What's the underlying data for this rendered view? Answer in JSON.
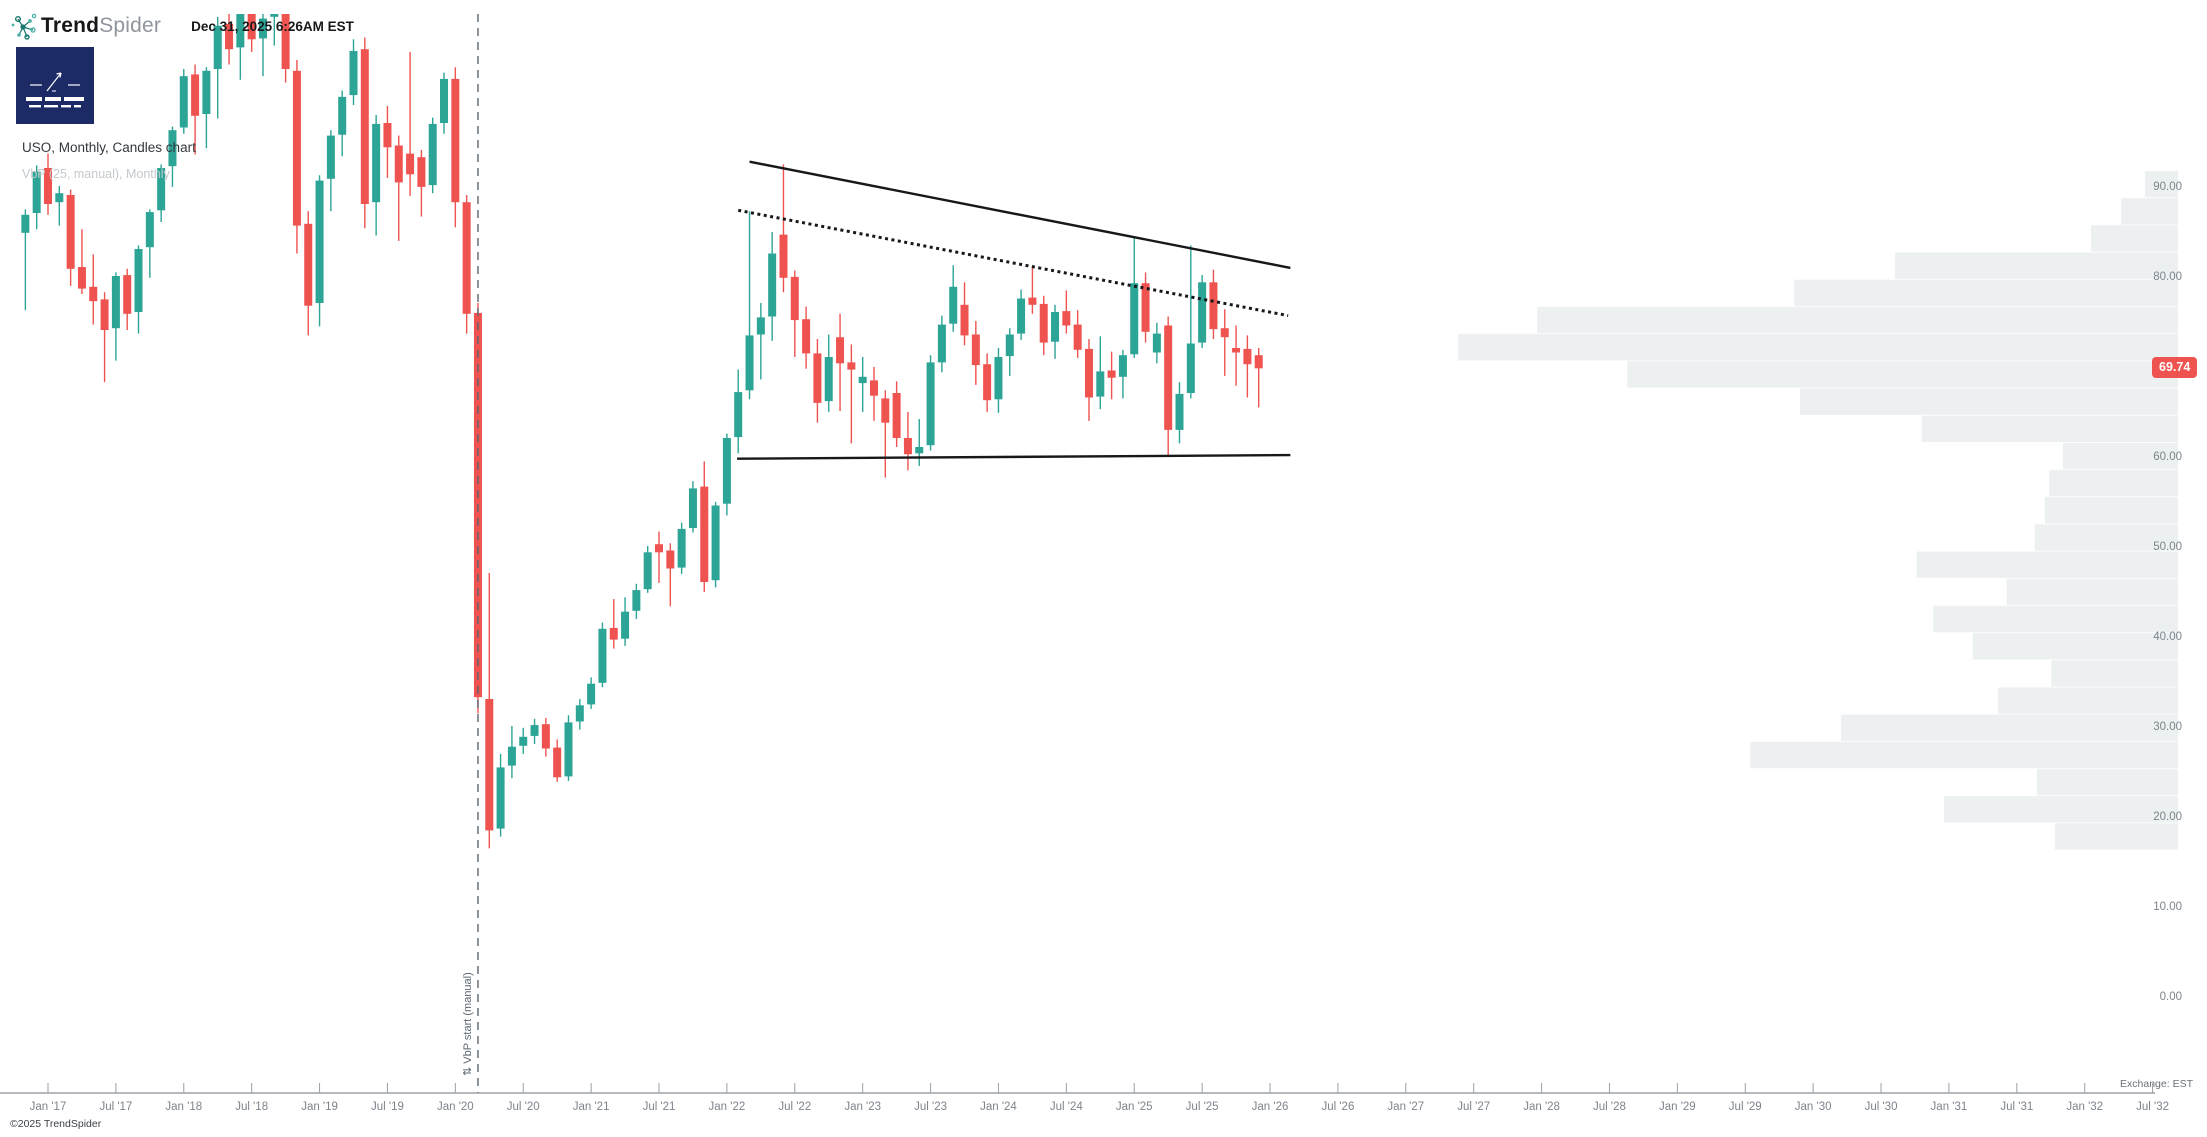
{
  "header": {
    "brand_bold": "Trend",
    "brand_light": "Spider",
    "timestamp": "Dec 31, 2025 6:26AM EST"
  },
  "titles": {
    "symbol_line": "USO, Monthly, Candles chart",
    "indicator_line": "VbP (25, manual), Monthly"
  },
  "footer": {
    "copyright": "©2025 TrendSpider",
    "exchange_note": "Exchange: EST"
  },
  "price_tag": {
    "value": "69.74"
  },
  "vbp_start_label": "⇅ VbP start (manual)",
  "colors": {
    "up": "#2ca496",
    "down": "#ef5350",
    "vbp_bar": "#ecf0f1",
    "axis_text": "#7d848c",
    "trendline": "#16181a",
    "dashed_line": "#5b6673",
    "tag_bg": "#ef5350",
    "watermark_bg": "#1c2a66",
    "icon_teal_dark": "#17796d",
    "icon_teal_light": "#4fb3a9"
  },
  "chart_data": {
    "type": "candlestick",
    "symbol": "USO",
    "timeframe": "Monthly",
    "last_price": 69.74,
    "y_ticks": [
      90,
      80,
      70,
      60,
      50,
      40,
      30,
      20,
      10,
      0
    ],
    "x_tick_labels": [
      "Jan '17",
      "Jul '17",
      "Jan '18",
      "Jul '18",
      "Jan '19",
      "Jul '19",
      "Jan '20",
      "Jul '20",
      "Jan '21",
      "Jul '21",
      "Jan '22",
      "Jul '22",
      "Jan '23",
      "Jul '23",
      "Jan '24",
      "Jul '24",
      "Jan '25",
      "Jul '25",
      "Jan '26",
      "Jul '26",
      "Jan '27",
      "Jul '27",
      "Jan '28",
      "Jul '28",
      "Jan '29",
      "Jul '29",
      "Jan '30",
      "Jul '30",
      "Jan '31",
      "Jul '31",
      "Jan '32",
      "Jul '32"
    ],
    "start_month": "2016-11",
    "ohlc": [
      [
        "2016-11",
        84.8,
        87.4,
        76.2,
        86.8
      ],
      [
        "2016-12",
        87.0,
        92.3,
        85.2,
        91.6
      ],
      [
        "2017-01",
        92.0,
        93.6,
        86.8,
        88.0
      ],
      [
        "2017-02",
        88.2,
        90.0,
        85.6,
        89.2
      ],
      [
        "2017-03",
        89.0,
        89.6,
        78.9,
        80.8
      ],
      [
        "2017-04",
        81.0,
        85.2,
        78.0,
        78.6
      ],
      [
        "2017-05",
        78.8,
        82.4,
        74.6,
        77.2
      ],
      [
        "2017-06",
        77.4,
        78.2,
        68.2,
        74.0
      ],
      [
        "2017-07",
        74.2,
        80.4,
        70.6,
        80.0
      ],
      [
        "2017-08",
        80.1,
        80.8,
        74.0,
        75.8
      ],
      [
        "2017-09",
        76.0,
        83.4,
        73.6,
        83.0
      ],
      [
        "2017-10",
        83.2,
        87.4,
        79.8,
        87.1
      ],
      [
        "2017-11",
        87.3,
        92.4,
        86.0,
        92.0
      ],
      [
        "2017-12",
        92.2,
        96.6,
        89.9,
        96.2
      ],
      [
        "2018-01",
        96.5,
        103.0,
        95.8,
        102.2
      ],
      [
        "2018-02",
        102.4,
        103.5,
        93.5,
        97.8
      ],
      [
        "2018-03",
        98.0,
        103.2,
        94.2,
        102.8
      ],
      [
        "2018-04",
        103.0,
        108.8,
        97.5,
        107.8
      ],
      [
        "2018-05",
        108.0,
        111.5,
        103.5,
        105.2
      ],
      [
        "2018-06",
        105.4,
        110.4,
        101.8,
        109.6
      ],
      [
        "2018-07",
        109.8,
        111.0,
        104.9,
        106.3
      ],
      [
        "2018-08",
        106.4,
        109.3,
        102.2,
        108.6
      ],
      [
        "2018-09",
        108.8,
        112.5,
        105.6,
        111.8
      ],
      [
        "2018-10",
        112.0,
        114.0,
        101.5,
        103.0
      ],
      [
        "2018-11",
        102.8,
        104.0,
        82.5,
        85.6
      ],
      [
        "2018-12",
        85.8,
        87.2,
        73.4,
        76.7
      ],
      [
        "2019-01",
        77.0,
        91.2,
        74.4,
        90.6
      ],
      [
        "2019-02",
        90.8,
        96.2,
        87.2,
        95.6
      ],
      [
        "2019-03",
        95.7,
        100.6,
        93.3,
        99.9
      ],
      [
        "2019-04",
        100.1,
        106.3,
        99.0,
        105.0
      ],
      [
        "2019-05",
        105.2,
        106.5,
        85.3,
        88.0
      ],
      [
        "2019-06",
        88.2,
        97.9,
        84.5,
        96.9
      ],
      [
        "2019-07",
        97.0,
        98.9,
        90.9,
        94.3
      ],
      [
        "2019-08",
        94.5,
        95.6,
        83.9,
        90.4
      ],
      [
        "2019-09",
        93.6,
        104.9,
        88.9,
        91.3
      ],
      [
        "2019-10",
        93.2,
        94.0,
        86.6,
        89.9
      ],
      [
        "2019-11",
        90.1,
        97.6,
        89.2,
        96.9
      ],
      [
        "2019-12",
        97.0,
        102.6,
        95.8,
        101.9
      ],
      [
        "2020-01",
        101.9,
        103.2,
        85.4,
        88.2
      ],
      [
        "2020-02",
        88.2,
        89.0,
        73.6,
        75.8
      ],
      [
        "2020-03",
        75.9,
        77.0,
        31.4,
        33.2
      ],
      [
        "2020-04",
        33.0,
        47.0,
        16.4,
        18.4
      ],
      [
        "2020-05",
        18.6,
        26.9,
        17.7,
        25.4
      ],
      [
        "2020-06",
        25.6,
        30.0,
        24.2,
        27.7
      ],
      [
        "2020-07",
        27.8,
        29.8,
        26.9,
        28.8
      ],
      [
        "2020-08",
        28.9,
        30.8,
        28.0,
        30.1
      ],
      [
        "2020-09",
        30.2,
        30.9,
        26.6,
        27.5
      ],
      [
        "2020-10",
        27.6,
        28.5,
        23.8,
        24.3
      ],
      [
        "2020-11",
        24.4,
        31.2,
        23.9,
        30.4
      ],
      [
        "2020-12",
        30.5,
        33.0,
        29.6,
        32.3
      ],
      [
        "2021-01",
        32.4,
        35.4,
        31.9,
        34.7
      ],
      [
        "2021-02",
        34.8,
        41.5,
        34.3,
        40.8
      ],
      [
        "2021-03",
        40.9,
        44.1,
        38.6,
        39.6
      ],
      [
        "2021-04",
        39.7,
        44.3,
        38.9,
        42.7
      ],
      [
        "2021-05",
        42.8,
        45.8,
        41.9,
        45.1
      ],
      [
        "2021-06",
        45.2,
        50.0,
        44.8,
        49.3
      ],
      [
        "2021-07",
        50.2,
        51.6,
        45.9,
        49.3
      ],
      [
        "2021-08",
        49.5,
        50.3,
        43.3,
        47.5
      ],
      [
        "2021-09",
        47.6,
        52.6,
        46.9,
        51.9
      ],
      [
        "2021-10",
        52.0,
        57.2,
        51.5,
        56.4
      ],
      [
        "2021-11",
        56.6,
        59.4,
        44.9,
        46.0
      ],
      [
        "2021-12",
        46.2,
        54.9,
        45.4,
        54.5
      ],
      [
        "2022-01",
        54.7,
        62.5,
        53.4,
        62.0
      ],
      [
        "2022-02",
        62.1,
        69.6,
        60.3,
        67.1
      ],
      [
        "2022-03",
        67.3,
        87.2,
        66.3,
        73.4
      ],
      [
        "2022-04",
        73.5,
        77.0,
        68.5,
        75.4
      ],
      [
        "2022-05",
        75.5,
        84.9,
        72.8,
        82.5
      ],
      [
        "2022-06",
        84.6,
        92.4,
        78.2,
        79.8
      ],
      [
        "2022-07",
        79.9,
        80.6,
        71.0,
        75.1
      ],
      [
        "2022-08",
        75.2,
        76.6,
        69.7,
        71.4
      ],
      [
        "2022-09",
        71.4,
        73.0,
        63.7,
        65.9
      ],
      [
        "2022-10",
        66.1,
        73.5,
        64.9,
        71.0
      ],
      [
        "2022-11",
        73.2,
        75.8,
        65.0,
        70.3
      ],
      [
        "2022-12",
        70.4,
        72.4,
        61.4,
        69.6
      ],
      [
        "2023-01",
        68.1,
        71.0,
        64.9,
        68.8
      ],
      [
        "2023-02",
        68.4,
        69.9,
        63.9,
        66.7
      ],
      [
        "2023-03",
        66.4,
        67.3,
        57.6,
        63.7
      ],
      [
        "2023-04",
        67.0,
        68.3,
        61.0,
        62.0
      ],
      [
        "2023-05",
        62.0,
        64.9,
        58.4,
        60.2
      ],
      [
        "2023-06",
        60.3,
        64.1,
        58.9,
        61.0
      ],
      [
        "2023-07",
        61.2,
        71.2,
        60.6,
        70.4
      ],
      [
        "2023-08",
        70.4,
        75.6,
        69.3,
        74.6
      ],
      [
        "2023-09",
        74.7,
        81.2,
        73.8,
        78.8
      ],
      [
        "2023-10",
        76.8,
        79.3,
        72.3,
        73.4
      ],
      [
        "2023-11",
        73.5,
        75.0,
        67.9,
        70.1
      ],
      [
        "2023-12",
        70.2,
        71.4,
        64.9,
        66.2
      ],
      [
        "2024-01",
        66.3,
        72.0,
        64.8,
        71.0
      ],
      [
        "2024-02",
        71.1,
        74.2,
        68.9,
        73.5
      ],
      [
        "2024-03",
        73.6,
        78.5,
        72.9,
        77.5
      ],
      [
        "2024-04",
        77.6,
        80.9,
        75.8,
        76.8
      ],
      [
        "2024-05",
        76.9,
        77.8,
        71.2,
        72.6
      ],
      [
        "2024-06",
        72.7,
        76.8,
        70.8,
        76.0
      ],
      [
        "2024-07",
        76.1,
        78.4,
        73.6,
        74.5
      ],
      [
        "2024-08",
        74.6,
        76.2,
        70.9,
        71.8
      ],
      [
        "2024-09",
        71.9,
        73.0,
        63.9,
        66.5
      ],
      [
        "2024-10",
        66.6,
        73.3,
        65.2,
        69.4
      ],
      [
        "2024-11",
        69.5,
        71.6,
        66.3,
        68.7
      ],
      [
        "2024-12",
        68.8,
        71.8,
        66.4,
        71.2
      ],
      [
        "2025-01",
        71.3,
        84.2,
        70.9,
        79.2
      ],
      [
        "2025-02",
        79.2,
        80.4,
        72.6,
        73.8
      ],
      [
        "2025-03",
        71.5,
        74.8,
        70.3,
        73.6
      ],
      [
        "2025-04",
        74.5,
        75.5,
        59.9,
        62.9
      ],
      [
        "2025-05",
        62.9,
        68.2,
        61.4,
        66.9
      ],
      [
        "2025-06",
        67.0,
        83.4,
        66.4,
        72.5
      ],
      [
        "2025-07",
        72.6,
        80.1,
        72.0,
        79.3
      ],
      [
        "2025-08",
        79.3,
        80.7,
        73.0,
        74.1
      ],
      [
        "2025-09",
        74.2,
        76.3,
        68.9,
        73.2
      ],
      [
        "2025-10",
        72.0,
        74.5,
        67.8,
        71.5
      ],
      [
        "2025-11",
        71.9,
        73.4,
        66.5,
        70.2
      ],
      [
        "2025-12",
        71.2,
        72.0,
        65.4,
        69.74
      ]
    ],
    "volume_profile": {
      "rows": 25,
      "price_top": 91.7,
      "price_bottom": 16.2,
      "relative_widths": [
        0.046,
        0.079,
        0.121,
        0.393,
        0.533,
        0.89,
        1.0,
        0.765,
        0.525,
        0.356,
        0.16,
        0.179,
        0.185,
        0.199,
        0.363,
        0.238,
        0.34,
        0.285,
        0.176,
        0.25,
        0.468,
        0.594,
        0.196,
        0.325,
        0.171
      ]
    },
    "trendlines": [
      {
        "name": "upper-resistance-line",
        "style": "solid",
        "m1": 62.0,
        "p1": 92.7,
        "m2": 109.8,
        "p2": 80.9
      },
      {
        "name": "inner-resistance-dotted-line",
        "style": "dotted",
        "m1": 61.0,
        "p1": 87.3,
        "m2": 109.6,
        "p2": 75.6
      },
      {
        "name": "lower-support-line",
        "style": "solid",
        "m1": 60.9,
        "p1": 59.7,
        "m2": 109.8,
        "p2": 60.1
      }
    ],
    "vbp_start_month_index": 38
  }
}
